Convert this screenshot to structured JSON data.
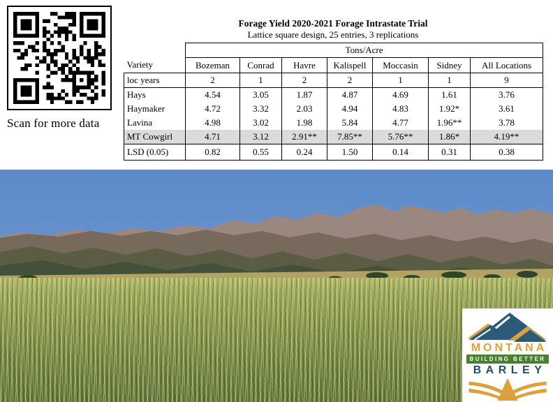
{
  "qr": {
    "icon": "qr-code-icon",
    "caption": "Scan for more data"
  },
  "table": {
    "title": "Forage Yield 2020-2021 Forage Intrastate Trial",
    "subtitle": "Lattice square design, 25 entries, 3 replications",
    "units_header": "Tons/Acre",
    "columns": [
      "Variety",
      "Bozeman",
      "Conrad",
      "Havre",
      "Kalispell",
      "Moccasin",
      "Sidney",
      "All Locations"
    ],
    "rows": [
      {
        "label": "loc years",
        "values": [
          "2",
          "1",
          "2",
          "2",
          "1",
          "1",
          "9"
        ]
      },
      {
        "label": "Hays",
        "values": [
          "4.54",
          "3.05",
          "1.87",
          "4.87",
          "4.69",
          "1.61",
          "3.76"
        ]
      },
      {
        "label": "Haymaker",
        "values": [
          "4.72",
          "3.32",
          "2.03",
          "4.94",
          "4.83",
          "1.92*",
          "3.61"
        ]
      },
      {
        "label": "Lavina",
        "values": [
          "4.98",
          "3.02",
          "1.98",
          "5.84",
          "4.77",
          "1.96**",
          "3.78"
        ]
      },
      {
        "label": "MT Cowgirl",
        "values": [
          "4.71",
          "3.12",
          "2.91**",
          "7.85**",
          "5.76**",
          "1.86*",
          "4.19**"
        ],
        "highlighted": true
      },
      {
        "label": "LSD (0.05)",
        "values": [
          "0.82",
          "0.55",
          "0.24",
          "1.50",
          "0.14",
          "0.31",
          "0.38"
        ]
      }
    ]
  },
  "photo": {
    "description_icon": "barley-field-mountains-photo"
  },
  "logo": {
    "line1": "MONTANA",
    "line2": "BUILDING BETTER",
    "line3": "BARLEY"
  },
  "colors": {
    "accent_gold": "#DDA03C",
    "logo_blue": "#2C5B7A",
    "logo_green": "#4C8030",
    "barley_blue": "#1E4D6E",
    "row_highlight": "#DBDBDB",
    "sky_top": "#5B89C9",
    "sky_bottom": "#8FAFD9",
    "field_green": "#6F8347"
  }
}
